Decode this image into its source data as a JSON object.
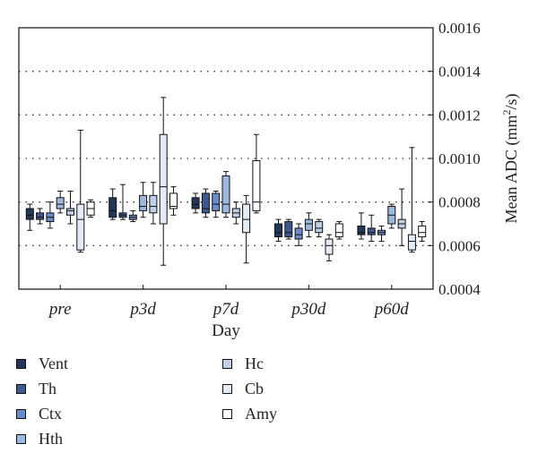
{
  "chart_data": {
    "type": "box",
    "xlabel": "Day",
    "ylabel_main": "Mean ADC (mm",
    "ylabel_sup": "2",
    "ylabel_end": "/s)",
    "y_axis_side": "right",
    "ylim": [
      0.0004,
      0.0016
    ],
    "yticks": [
      "0.0016",
      "0.0014",
      "0.0012",
      "0.0010",
      "0.0008",
      "0.0006",
      "0.0004"
    ],
    "ytick_values": [
      0.0016,
      0.0014,
      0.0012,
      0.001,
      0.0008,
      0.0006,
      0.0004
    ],
    "grid": "horizontal dotted",
    "categories": [
      "pre",
      "p3d",
      "p7d",
      "p30d",
      "p60d"
    ],
    "series": [
      {
        "name": "Vent",
        "color": "#22375a",
        "boxes": [
          [
            0.00067,
            0.00072,
            0.00074,
            0.00077,
            0.00079
          ],
          [
            0.00072,
            0.00073,
            0.00076,
            0.00082,
            0.00086
          ],
          [
            0.00075,
            0.00077,
            0.00079,
            0.00082,
            0.00084
          ],
          [
            0.00062,
            0.00064,
            0.00066,
            0.0007,
            0.00072
          ],
          [
            0.00063,
            0.00065,
            0.00066,
            0.00069,
            0.00075
          ]
        ]
      },
      {
        "name": "Th",
        "color": "#3c5a90",
        "boxes": [
          [
            0.0007,
            0.00072,
            0.00073,
            0.00075,
            0.00077
          ],
          [
            0.00072,
            0.00073,
            0.00074,
            0.00075,
            0.00088
          ],
          [
            0.00073,
            0.00075,
            0.00077,
            0.00084,
            0.00086
          ],
          [
            0.00063,
            0.00064,
            0.00066,
            0.00071,
            0.00072
          ],
          [
            0.00062,
            0.00065,
            0.00066,
            0.00068,
            0.00074
          ]
        ]
      },
      {
        "name": "Ctx",
        "color": "#6a8ccc",
        "boxes": [
          [
            0.00068,
            0.00071,
            0.00073,
            0.00075,
            0.0008
          ],
          [
            0.00071,
            0.00072,
            0.00073,
            0.00074,
            0.00076
          ],
          [
            0.00073,
            0.00076,
            0.00079,
            0.00084,
            0.00085
          ],
          [
            0.0006,
            0.00063,
            0.00065,
            0.00068,
            0.0007
          ],
          [
            0.00062,
            0.00065,
            0.00066,
            0.00067,
            0.00069
          ]
        ]
      },
      {
        "name": "Hth",
        "color": "#9db8e0",
        "boxes": [
          [
            0.00075,
            0.00077,
            0.00079,
            0.00082,
            0.00085
          ],
          [
            0.00073,
            0.00076,
            0.00078,
            0.00083,
            0.00089
          ],
          [
            0.00073,
            0.00075,
            0.00079,
            0.00092,
            0.00094
          ],
          [
            0.00064,
            0.00067,
            0.0007,
            0.00072,
            0.00075
          ],
          [
            0.00068,
            0.0007,
            0.00074,
            0.00078,
            0.00079
          ]
        ]
      },
      {
        "name": "Hc",
        "color": "#bdcfe9",
        "boxes": [
          [
            0.0007,
            0.00074,
            0.00076,
            0.00077,
            0.00085
          ],
          [
            0.0007,
            0.00075,
            0.00078,
            0.00083,
            0.00089
          ],
          [
            0.0007,
            0.00073,
            0.00075,
            0.00077,
            0.0008
          ],
          [
            0.00064,
            0.00066,
            0.00068,
            0.00071,
            0.00072
          ],
          [
            0.0006,
            0.00068,
            0.0007,
            0.00072,
            0.00086
          ]
        ]
      },
      {
        "name": "Cb",
        "color": "#e2ebf7",
        "boxes": [
          [
            0.00057,
            0.00058,
            0.00072,
            0.00079,
            0.00113
          ],
          [
            0.00051,
            0.0007,
            0.00087,
            0.00111,
            0.00128
          ],
          [
            0.00052,
            0.00066,
            0.00072,
            0.00079,
            0.00083
          ],
          [
            0.00053,
            0.00056,
            0.0006,
            0.00063,
            0.00065
          ],
          [
            0.00057,
            0.00058,
            0.00062,
            0.00065,
            0.00105
          ]
        ]
      },
      {
        "name": "Amy",
        "color": "#ffffff",
        "boxes": [
          [
            0.00073,
            0.00074,
            0.00077,
            0.0008,
            0.00081
          ],
          [
            0.00074,
            0.00077,
            0.00078,
            0.00084,
            0.00087
          ],
          [
            0.00075,
            0.00076,
            0.0008,
            0.00099,
            0.00111
          ],
          [
            0.00063,
            0.00064,
            0.00066,
            0.0007,
            0.00071
          ],
          [
            0.00062,
            0.00064,
            0.00066,
            0.00069,
            0.00071
          ]
        ]
      }
    ],
    "legend_position": "bottom-left, two columns"
  }
}
